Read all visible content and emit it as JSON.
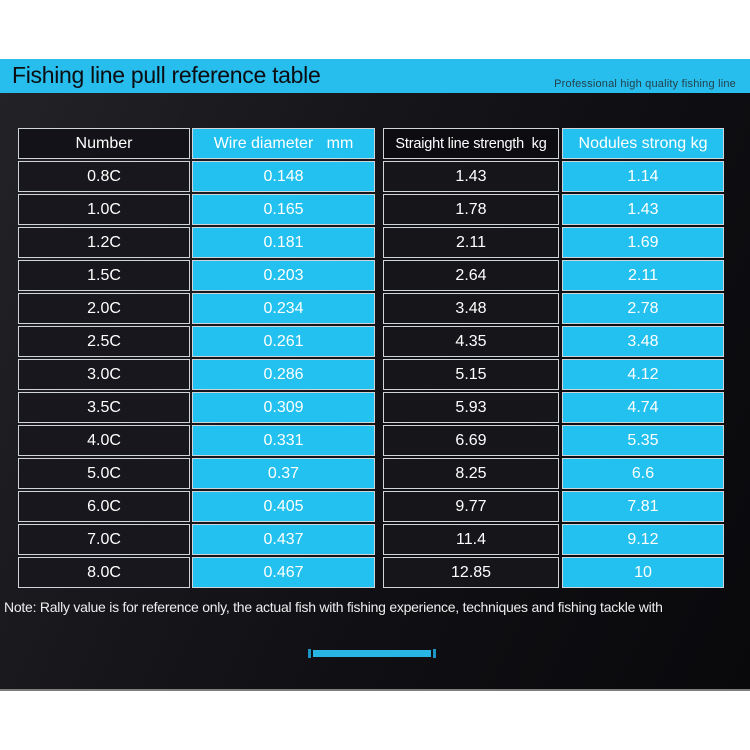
{
  "header": {
    "title": "Fishing line pull reference table",
    "tagline": "Professional high quality fishing line"
  },
  "footer": {
    "note": "Note: Rally value is for reference only, the actual fish with fishing experience, techniques and fishing tackle with"
  },
  "colors": {
    "accent_cyan": "#22c1ef",
    "titlebar_cyan": "#27bdec",
    "dark_cell": "#17171d",
    "darker_cell": "#0c0c11",
    "panel_dark": "#101014",
    "cell_border": "#cfd4d8",
    "note_text": "#eeeeee",
    "title_text": "#0c0d12"
  },
  "chart_data": {
    "type": "table",
    "title": "Fishing line pull reference table",
    "columns": [
      "Number",
      "Wire diameter   mm",
      "Straight line strength  kg",
      "Nodules strong kg"
    ],
    "rows": [
      [
        "0.8C",
        "0.148",
        "1.43",
        "1.14"
      ],
      [
        "1.0C",
        "0.165",
        "1.78",
        "1.43"
      ],
      [
        "1.2C",
        "0.181",
        "2.11",
        "1.69"
      ],
      [
        "1.5C",
        "0.203",
        "2.64",
        "2.11"
      ],
      [
        "2.0C",
        "0.234",
        "3.48",
        "2.78"
      ],
      [
        "2.5C",
        "0.261",
        "4.35",
        "3.48"
      ],
      [
        "3.0C",
        "0.286",
        "5.15",
        "4.12"
      ],
      [
        "3.5C",
        "0.309",
        "5.93",
        "4.74"
      ],
      [
        "4.0C",
        "0.331",
        "6.69",
        "5.35"
      ],
      [
        "5.0C",
        "0.37",
        "8.25",
        "6.6"
      ],
      [
        "6.0C",
        "0.405",
        "9.77",
        "7.81"
      ],
      [
        "7.0C",
        "0.437",
        "11.4",
        "9.12"
      ],
      [
        "8.0C",
        "0.467",
        "12.85",
        "10"
      ]
    ]
  }
}
